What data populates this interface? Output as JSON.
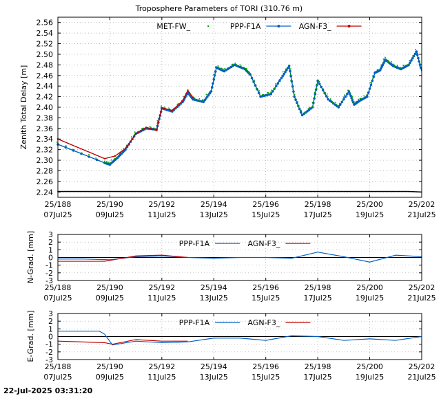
{
  "title": "Troposphere Parameters of TORI (310.76 m)",
  "timestamp": "22-Jul-2025 03:31:20",
  "colors": {
    "met": "#00a000",
    "ppp": "#0060c0",
    "agn": "#c00000",
    "grid": "#a0a0a0"
  },
  "x_ticks": [
    {
      "day": 188,
      "top": "25/188",
      "bottom": "07Jul25"
    },
    {
      "day": 190,
      "top": "25/190",
      "bottom": "09Jul25"
    },
    {
      "day": 192,
      "top": "25/192",
      "bottom": "11Jul25"
    },
    {
      "day": 194,
      "top": "25/194",
      "bottom": "13Jul25"
    },
    {
      "day": 196,
      "top": "25/196",
      "bottom": "15Jul25"
    },
    {
      "day": 198,
      "top": "25/198",
      "bottom": "17Jul25"
    },
    {
      "day": 200,
      "top": "25/200",
      "bottom": "19Jul25"
    },
    {
      "day": 202,
      "top": "25/202",
      "bottom": "21Jul25"
    }
  ],
  "chart_data": [
    {
      "type": "line",
      "ylabel": "Zenith Total Delay [m]",
      "xlim": [
        188,
        202
      ],
      "ylim": [
        2.23,
        2.57
      ],
      "y_ticks": [
        2.24,
        2.26,
        2.28,
        2.3,
        2.32,
        2.34,
        2.36,
        2.38,
        2.4,
        2.42,
        2.44,
        2.46,
        2.48,
        2.5,
        2.52,
        2.54,
        2.56
      ],
      "grid": true,
      "legend_position": "top-center",
      "series": [
        {
          "name": "MET-FW_",
          "style": "points",
          "x": [
            188,
            188.5,
            189,
            189.5,
            190,
            190.5,
            191,
            191.5,
            192,
            192.5,
            193,
            193.5,
            194,
            194.5,
            195,
            195.5,
            196,
            196.5,
            197,
            197.5,
            198,
            198.5,
            199,
            199.5,
            200,
            200.5,
            201,
            201.5,
            202
          ],
          "y": [
            2.241,
            2.241,
            2.241,
            2.241,
            2.241,
            2.241,
            2.241,
            2.241,
            2.241,
            2.241,
            2.241,
            2.241,
            2.241,
            2.241,
            2.241,
            2.241,
            2.241,
            2.241,
            2.241,
            2.241,
            2.241,
            2.241,
            2.241,
            2.241,
            2.241,
            2.241,
            2.241,
            2.241,
            2.24
          ]
        },
        {
          "name": "PPP-F1A",
          "style": "line-points",
          "x": [
            188,
            189.8,
            190.0,
            190.3,
            190.6,
            191.0,
            191.4,
            191.8,
            192.0,
            192.4,
            192.8,
            193.0,
            193.2,
            193.6,
            193.9,
            194.1,
            194.4,
            194.8,
            195.2,
            195.4,
            195.8,
            196.2,
            196.6,
            196.9,
            197.1,
            197.4,
            197.8,
            198.0,
            198.4,
            198.8,
            199.2,
            199.4,
            199.6,
            199.9,
            200.2,
            200.4,
            200.6,
            200.9,
            201.2,
            201.5,
            201.8,
            202.0
          ],
          "y": [
            2.33,
            2.295,
            2.292,
            2.305,
            2.32,
            2.35,
            2.36,
            2.358,
            2.398,
            2.392,
            2.41,
            2.428,
            2.415,
            2.41,
            2.43,
            2.475,
            2.468,
            2.48,
            2.472,
            2.462,
            2.42,
            2.425,
            2.455,
            2.478,
            2.42,
            2.385,
            2.4,
            2.45,
            2.415,
            2.4,
            2.43,
            2.405,
            2.412,
            2.42,
            2.465,
            2.47,
            2.49,
            2.478,
            2.472,
            2.48,
            2.505,
            2.468
          ]
        },
        {
          "name": "AGN-F3_",
          "style": "line",
          "x": [
            188,
            189.8,
            190.2,
            190.6,
            191.0,
            191.4,
            191.8,
            192.0,
            192.4,
            192.8,
            193.0,
            193.2
          ],
          "y": [
            2.34,
            2.303,
            2.308,
            2.322,
            2.35,
            2.362,
            2.356,
            2.399,
            2.394,
            2.412,
            2.432,
            2.418
          ]
        }
      ]
    },
    {
      "type": "line",
      "ylabel": "N-Grad. [mm]",
      "xlim": [
        188,
        202
      ],
      "ylim": [
        -3,
        3
      ],
      "y_ticks": [
        -3,
        -2,
        -1,
        0,
        1,
        2,
        3
      ],
      "grid": true,
      "legend_position": "top-center",
      "series": [
        {
          "name": "PPP-F1A",
          "x": [
            188,
            189,
            190,
            191,
            192,
            193,
            194,
            195,
            196,
            197,
            198,
            199,
            200,
            201,
            202
          ],
          "y": [
            -0.2,
            -0.2,
            -0.3,
            0.1,
            0.2,
            0.0,
            -0.1,
            0.0,
            0.0,
            -0.1,
            0.7,
            0.1,
            -0.6,
            0.3,
            0.1
          ]
        },
        {
          "name": "AGN-F3_",
          "x": [
            188,
            189.8,
            191,
            192,
            193
          ],
          "y": [
            -0.5,
            -0.5,
            0.2,
            0.3,
            0.0
          ]
        }
      ]
    },
    {
      "type": "line",
      "ylabel": "E-Grad. [mm]",
      "xlim": [
        188,
        202
      ],
      "ylim": [
        -3,
        3
      ],
      "y_ticks": [
        -3,
        -2,
        -1,
        0,
        1,
        2,
        3
      ],
      "grid": true,
      "legend_position": "top-center",
      "series": [
        {
          "name": "PPP-F1A",
          "x": [
            188,
            189.6,
            189.8,
            190.1,
            191,
            192,
            193,
            194,
            195,
            196,
            197,
            198,
            199,
            200,
            201,
            202
          ],
          "y": [
            0.7,
            0.7,
            0.3,
            -1.1,
            -0.6,
            -0.8,
            -0.7,
            -0.2,
            -0.2,
            -0.5,
            0.1,
            0.0,
            -0.5,
            -0.3,
            -0.5,
            0.0
          ]
        },
        {
          "name": "AGN-F3_",
          "x": [
            188,
            189.8,
            190.1,
            191,
            192,
            193
          ],
          "y": [
            -0.6,
            -0.8,
            -1.0,
            -0.4,
            -0.6,
            -0.6
          ]
        }
      ]
    }
  ]
}
